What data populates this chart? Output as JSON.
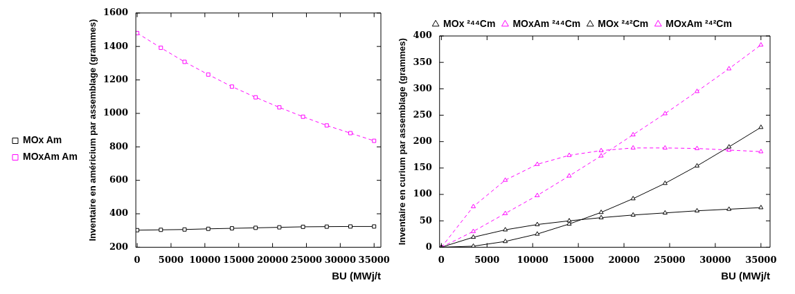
{
  "chart_data": [
    {
      "type": "line",
      "xlabel": "BU (MWj/t",
      "ylabel": "Inventaire en américium par assemblage (grammes)",
      "x": [
        0,
        3500,
        7000,
        10500,
        14000,
        17500,
        21000,
        24500,
        28000,
        31500,
        35000
      ],
      "xlim": [
        -200,
        36000
      ],
      "xticks": [
        0,
        5000,
        10000,
        15000,
        20000,
        25000,
        30000,
        35000
      ],
      "ylim": [
        200,
        1600
      ],
      "yticks": [
        200,
        400,
        600,
        800,
        1000,
        1200,
        1400,
        1600
      ],
      "grid": false,
      "legend": "left",
      "marker": "square",
      "series": [
        {
          "name": "MOx Am",
          "color": "#000000",
          "line_style": "solid",
          "values": [
            302,
            304,
            306,
            310,
            313,
            316,
            319,
            322,
            323,
            324,
            324
          ]
        },
        {
          "name": "MOxAm Am",
          "color": "#ff00ff",
          "line_style": "dashed",
          "values": [
            1480,
            1392,
            1308,
            1232,
            1160,
            1096,
            1036,
            980,
            928,
            882,
            836
          ]
        }
      ]
    },
    {
      "type": "line",
      "xlabel": "BU (MWj/t",
      "ylabel": "Inventaire en curium par assemblage (grammes)",
      "x": [
        0,
        3500,
        7000,
        10500,
        14000,
        17500,
        21000,
        24500,
        28000,
        31500,
        35000
      ],
      "xlim": [
        -200,
        36000
      ],
      "xticks": [
        0,
        5000,
        10000,
        15000,
        20000,
        25000,
        30000,
        35000
      ],
      "ylim": [
        0,
        400
      ],
      "yticks": [
        0,
        50,
        100,
        150,
        200,
        250,
        300,
        350,
        400
      ],
      "grid": false,
      "legend": "top",
      "marker": "triangle",
      "series": [
        {
          "name": "MOx ²⁴⁴Cm",
          "color": "#000000",
          "line_style": "solid",
          "values": [
            0,
            2,
            11,
            25,
            44,
            66,
            92,
            121,
            154,
            190,
            227
          ]
        },
        {
          "name": "MOxAm ²⁴⁴Cm",
          "color": "#ff00ff",
          "line_style": "dashed",
          "values": [
            0,
            30,
            64,
            98,
            135,
            173,
            213,
            253,
            295,
            338,
            383
          ]
        },
        {
          "name": "MOx ²⁴²Cm",
          "color": "#000000",
          "line_style": "solid",
          "values": [
            0,
            19,
            33,
            43,
            50,
            56,
            61,
            65,
            69,
            72,
            75
          ]
        },
        {
          "name": "MOxAm ²⁴²Cm",
          "color": "#ff00ff",
          "line_style": "dashed",
          "values": [
            0,
            77,
            127,
            157,
            174,
            183,
            188,
            188,
            187,
            184,
            181
          ]
        }
      ]
    }
  ]
}
